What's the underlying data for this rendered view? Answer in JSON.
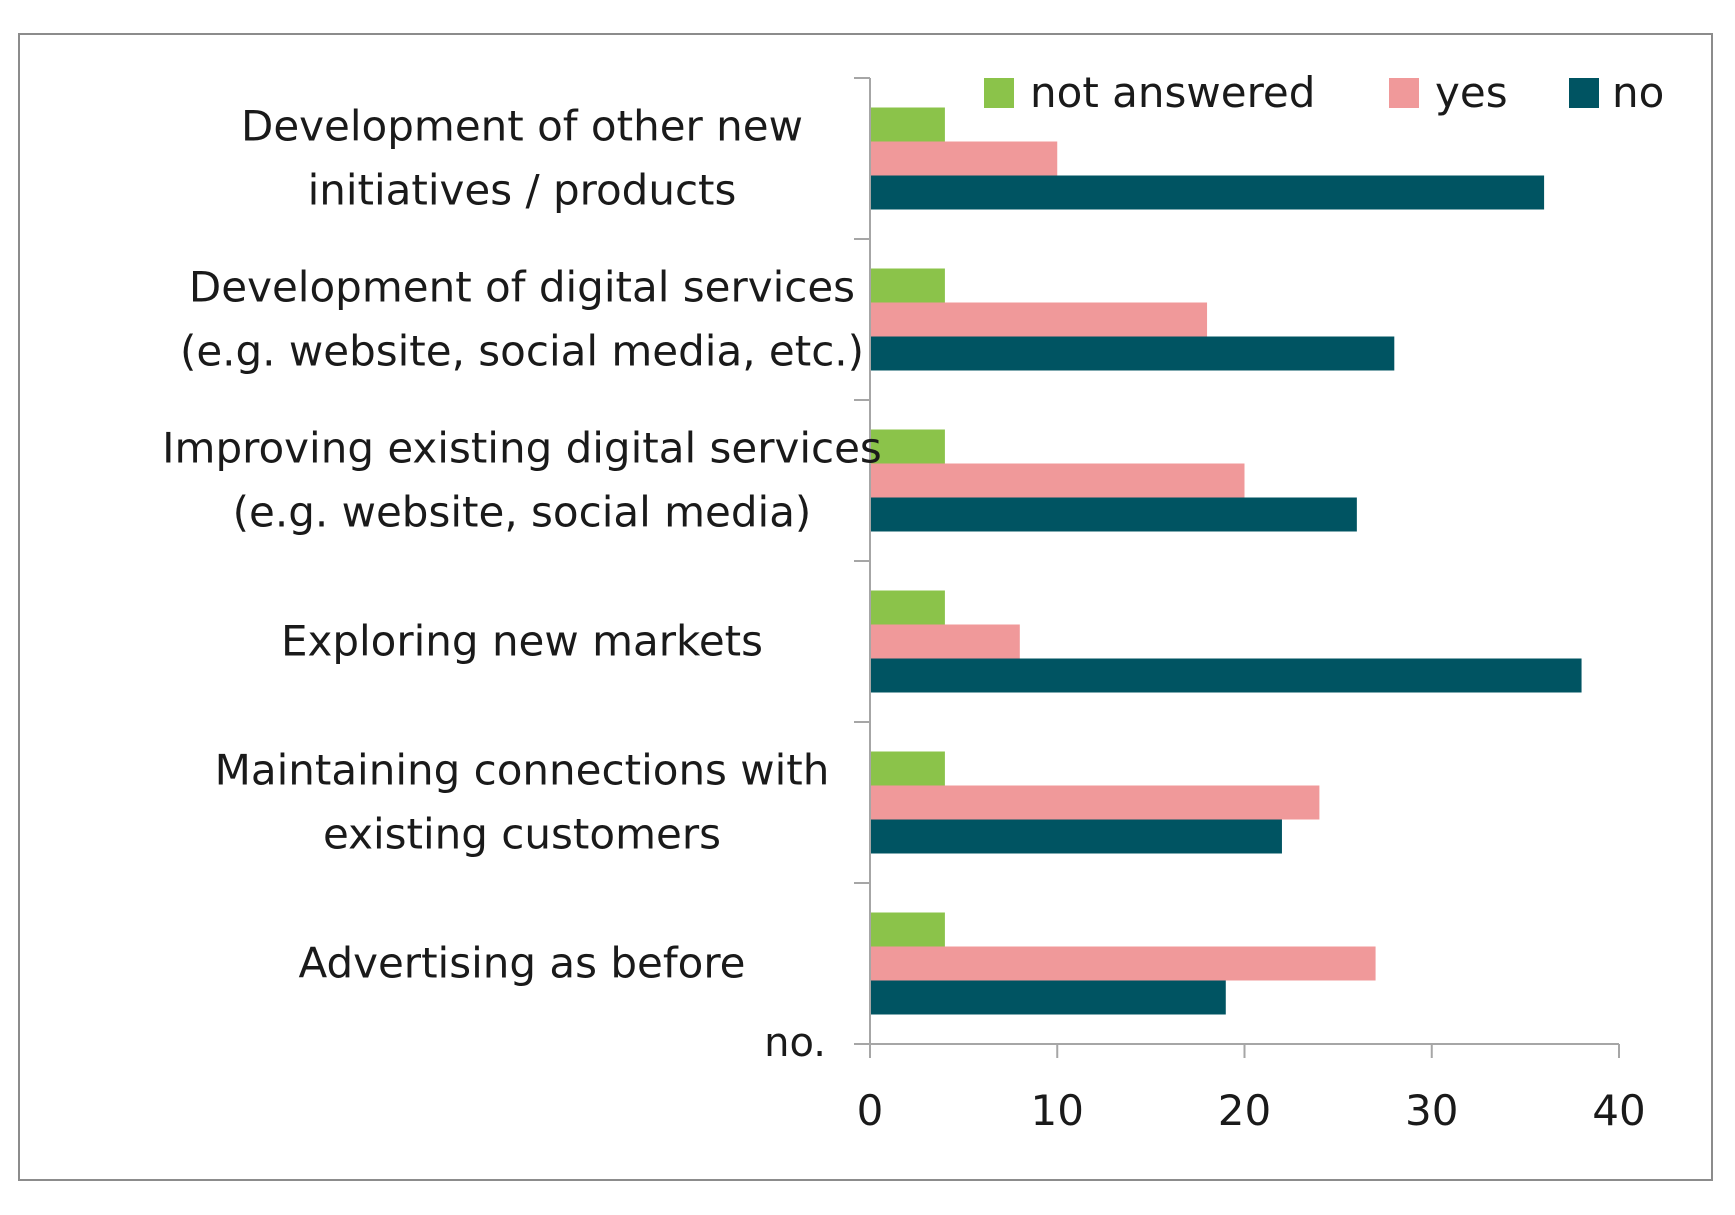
{
  "chart_data": {
    "type": "bar",
    "orientation": "horizontal",
    "categories": [
      [
        "Development of other new",
        "initiatives / products"
      ],
      [
        "Development of digital services",
        "(e.g. website, social media, etc.)"
      ],
      [
        "Improving existing digital services",
        "(e.g. website, social media)"
      ],
      [
        "Exploring new markets"
      ],
      [
        "Maintaining connections  with",
        "existing customers"
      ],
      [
        "Advertising as before"
      ]
    ],
    "series": [
      {
        "name": "not answered",
        "color": "#8bc34a",
        "values": [
          4,
          4,
          4,
          4,
          4,
          4
        ]
      },
      {
        "name": "yes",
        "color": "#f0999a",
        "values": [
          10,
          18,
          20,
          8,
          24,
          27
        ]
      },
      {
        "name": "no",
        "color": "#005462",
        "values": [
          36,
          28,
          26,
          38,
          22,
          19
        ]
      }
    ],
    "xlim": [
      0,
      40
    ],
    "xticks": [
      "0",
      "10",
      "20",
      "30",
      "40"
    ],
    "xtick_values": [
      0,
      10,
      20,
      30,
      40
    ],
    "axis_unit_label": "no.",
    "legend_position": "top-right",
    "grid": false
  }
}
